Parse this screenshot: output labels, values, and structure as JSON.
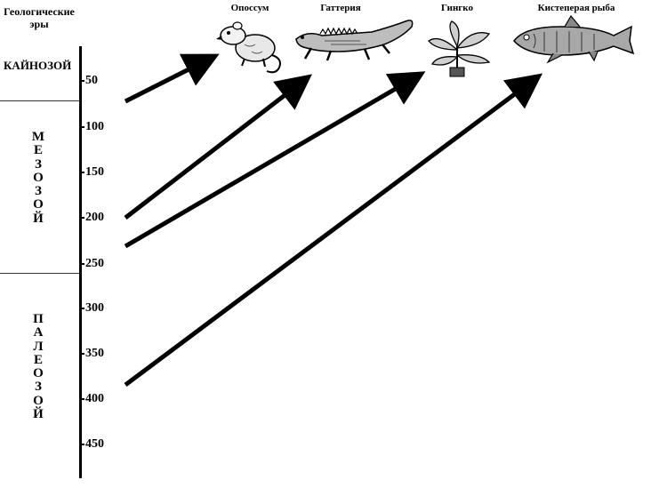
{
  "header": {
    "title_line1": "Геологические",
    "title_line2": "эры"
  },
  "eras": [
    {
      "name": "КАЙНОЗОЙ",
      "letters": [
        "КАЙНОЗОЙ"
      ],
      "range_top": 0,
      "range_bottom": 65
    },
    {
      "name": "МЕЗОЗОЙ",
      "letters": [
        "М",
        "Е",
        "З",
        "О",
        "З",
        "О",
        "Й"
      ],
      "range_top": 65,
      "range_bottom": 251
    },
    {
      "name": "ПАЛЕОЗОЙ",
      "letters": [
        "П",
        "А",
        "Л",
        "Е",
        "О",
        "З",
        "О",
        "Й"
      ],
      "range_top": 251,
      "range_bottom": 542
    }
  ],
  "axis": {
    "ticks": [
      "50",
      "100",
      "150",
      "200",
      "250",
      "300",
      "350",
      "400",
      "450"
    ],
    "min": 0,
    "max": 470
  },
  "organisms": [
    {
      "name": "Опоссум",
      "icon": "opossum-icon",
      "origin_ma": 70
    },
    {
      "name": "Гаттерия",
      "icon": "tuatara-icon",
      "origin_ma": 197
    },
    {
      "name": "Гингко",
      "icon": "ginkgo-icon",
      "origin_ma": 228
    },
    {
      "name": "Кистеперая рыба",
      "icon": "coelacanth-fish-icon",
      "origin_ma": 385
    }
  ],
  "colors": {
    "ink": "#000000",
    "background": "#ffffff",
    "separator": "#333333"
  }
}
